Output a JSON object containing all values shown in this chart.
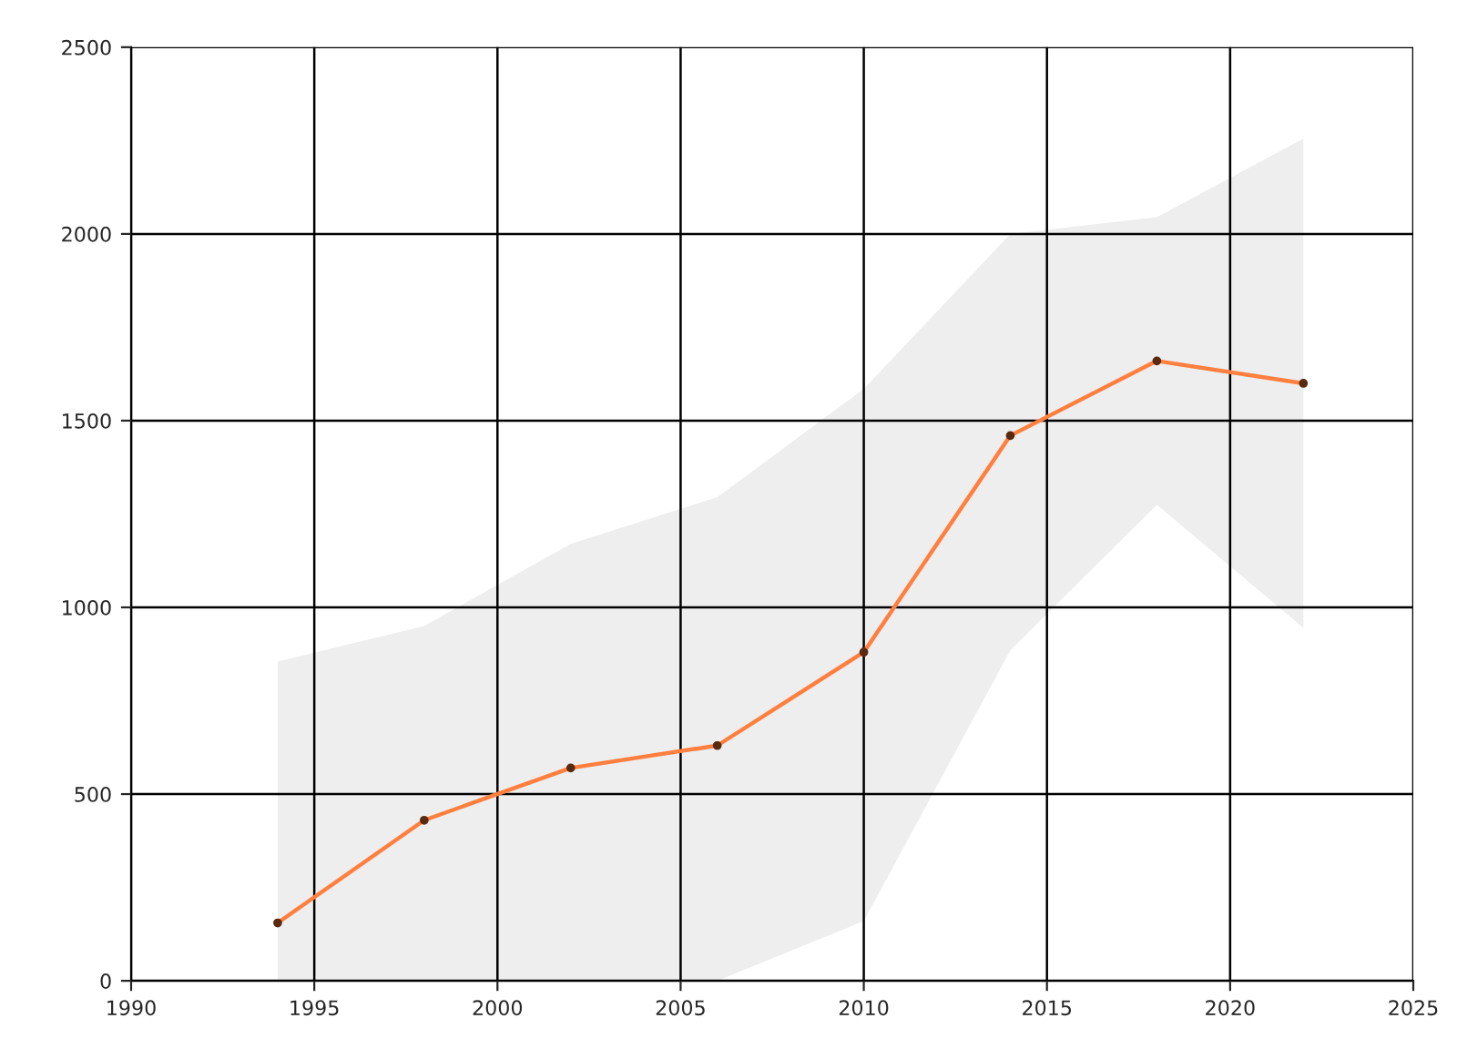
{
  "chart_data": {
    "type": "line",
    "x": [
      1994,
      1998,
      2002,
      2006,
      2010,
      2014,
      2018,
      2022
    ],
    "series": [
      {
        "color": "#ff7f3f",
        "values": [
          155,
          430,
          570,
          630,
          880,
          1460,
          1660,
          1600
        ],
        "lower": [
          0,
          0,
          0,
          0,
          160,
          885,
          1275,
          945
        ],
        "upper": [
          855,
          950,
          1170,
          1295,
          1585,
          2000,
          2045,
          2255
        ]
      }
    ],
    "xlim": [
      1990,
      2025
    ],
    "xticks": [
      1990,
      1995,
      2000,
      2005,
      2010,
      2015,
      2020,
      2025
    ],
    "ylim": [
      0,
      2500
    ],
    "yticks": [
      0,
      500,
      1000,
      1500,
      2000,
      2500
    ],
    "grid": true,
    "marker": "circle",
    "line_style": "solid"
  }
}
